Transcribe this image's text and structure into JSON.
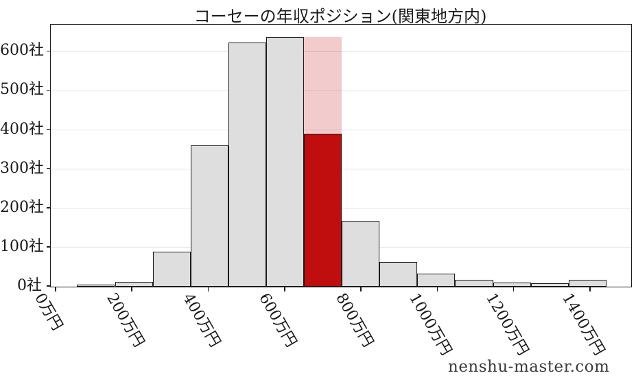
{
  "title": "コーセーの年収ポジション(関東地方内)",
  "watermark": "nenshu-master.com",
  "colors": {
    "bar_fill": "#dedede",
    "bar_edge": "#1a1a1a",
    "highlight_fill": "#c00d0e",
    "highlight_overlay": "rgba(192,13,14,0.21)",
    "gridline": "#e3e3e3",
    "axis": "#1a1a1a",
    "text": "#1a1a1a",
    "watermark_text": "#3a3a3a"
  },
  "chart_data": {
    "type": "bar",
    "subtype": "histogram",
    "title": "コーセーの年収ポジション(関東地方内)",
    "xlabel": "",
    "ylabel": "",
    "x_tick_values": [
      0,
      200,
      400,
      600,
      800,
      1000,
      1200,
      1400
    ],
    "x_tick_labels": [
      "0万円",
      "200万円",
      "400万円",
      "600万円",
      "800万円",
      "1000万円",
      "1200万円",
      "1400万円"
    ],
    "y_tick_values": [
      0,
      100,
      200,
      300,
      400,
      500,
      600
    ],
    "y_tick_labels": [
      "0社",
      "100社",
      "200社",
      "300社",
      "400社",
      "500社",
      "600社"
    ],
    "xlim": [
      -14,
      1506
    ],
    "ylim": [
      0,
      669
    ],
    "grid": "horizontal-only",
    "legend": "none",
    "bin_start": 55,
    "bin_width": 99,
    "counts": [
      5,
      13,
      90,
      360,
      624,
      638,
      390,
      168,
      63,
      33,
      17,
      10,
      8,
      17
    ],
    "highlight_index": 6,
    "highlight_value": 390,
    "highlight_overlay_top_value": 638,
    "unit_x": "万円",
    "unit_y": "社"
  }
}
